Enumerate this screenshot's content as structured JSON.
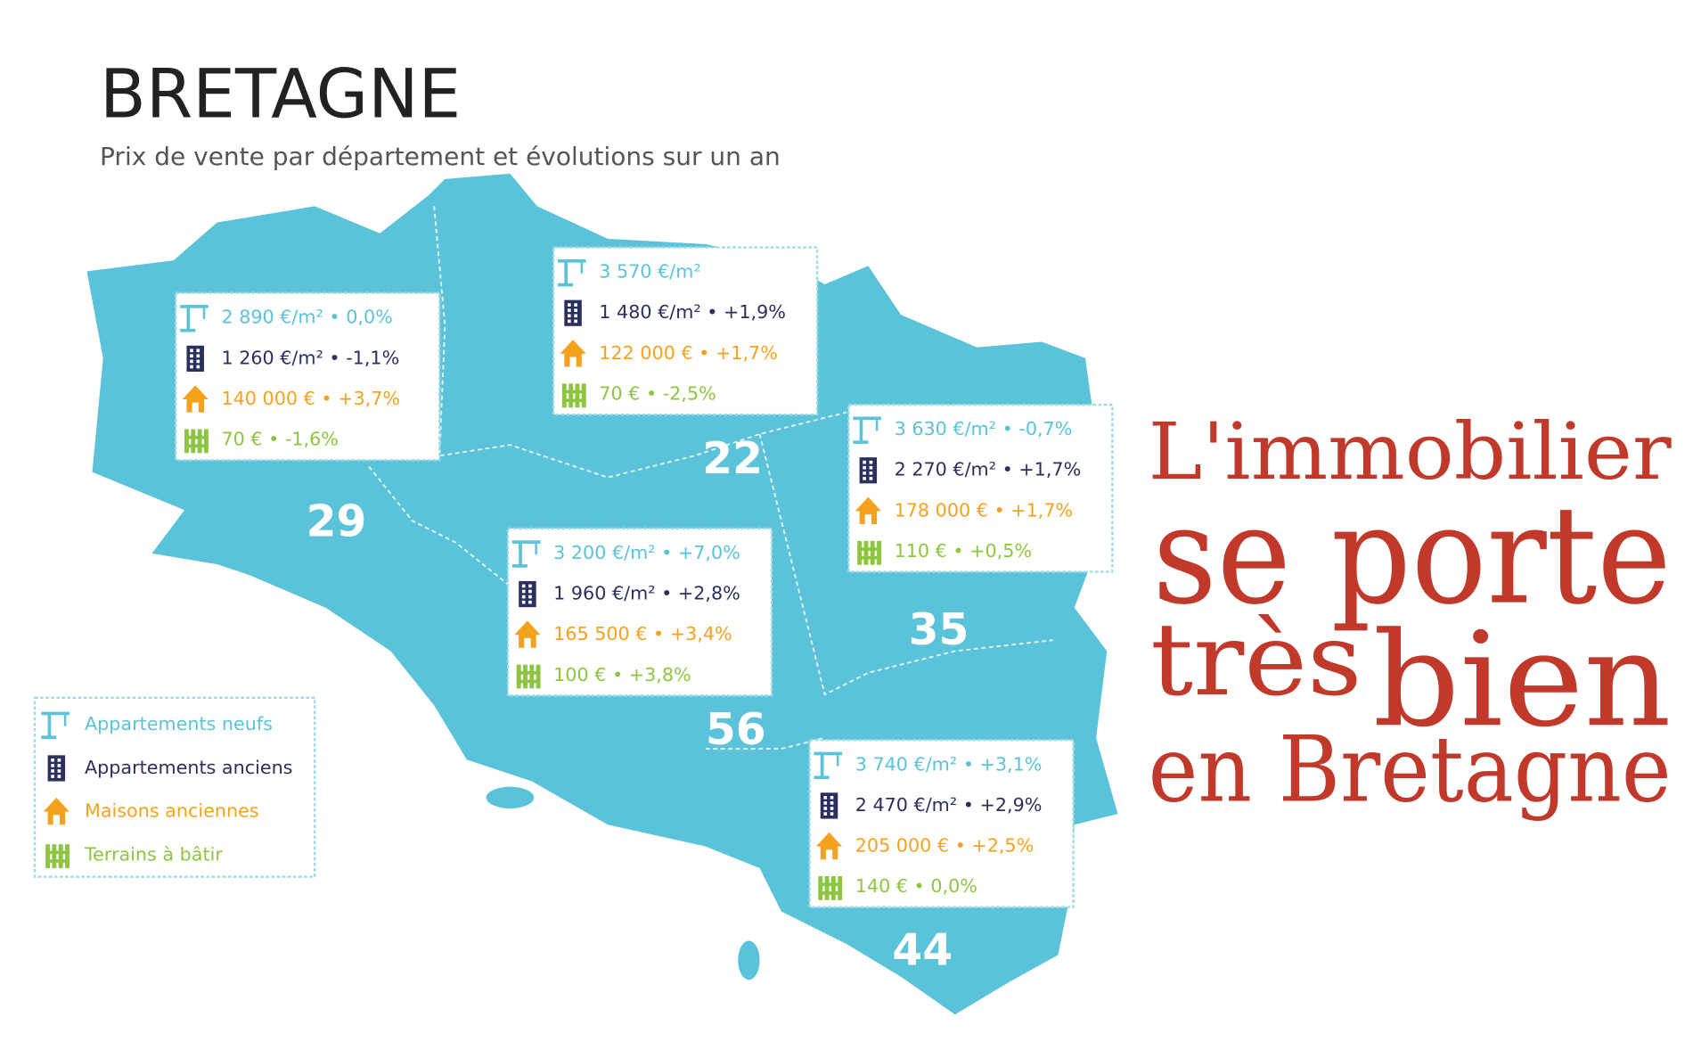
{
  "header": {
    "title": "BRETAGNE",
    "subtitle": "Prix de vente par département et évolutions sur un an"
  },
  "departments": [
    {
      "code": "29",
      "lines": [
        "2 890 €/m² • 0,0%",
        "1 260 €/m² • -1,1%",
        "140 000 € • +3,7%",
        "70 € • -1,6%"
      ]
    },
    {
      "code": "22",
      "lines": [
        "3 570 €/m²",
        "1 480 €/m² • +1,9%",
        "122 000 € • +1,7%",
        "70 € • -2,5%"
      ]
    },
    {
      "code": "35",
      "lines": [
        "3 630 €/m² • -0,7%",
        "2 270 €/m² • +1,7%",
        "178 000 € • +1,7%",
        "110 € • +0,5%"
      ]
    },
    {
      "code": "56",
      "lines": [
        "3 200 €/m² • +7,0%",
        "1 960 €/m² • +2,8%",
        "165 500 € • +3,4%",
        "100 € • +3,8%"
      ]
    },
    {
      "code": "44",
      "lines": [
        "3 740 €/m² • +3,1%",
        "2 470 €/m² • +2,9%",
        "205 000 € • +2,5%",
        "140 € • 0,0%"
      ]
    }
  ],
  "legend": [
    {
      "label": "Appartements neufs",
      "color": "#5bc3d9"
    },
    {
      "label": "Appartements anciens",
      "color": "#2b2f5e"
    },
    {
      "label": "Maisons anciennes",
      "color": "#f4a21e"
    },
    {
      "label": "Terrains à bâtir",
      "color": "#8cc63f"
    }
  ],
  "headline": [
    "L'immobilier",
    "se porte",
    "très",
    "bien",
    "en Bretagne"
  ]
}
